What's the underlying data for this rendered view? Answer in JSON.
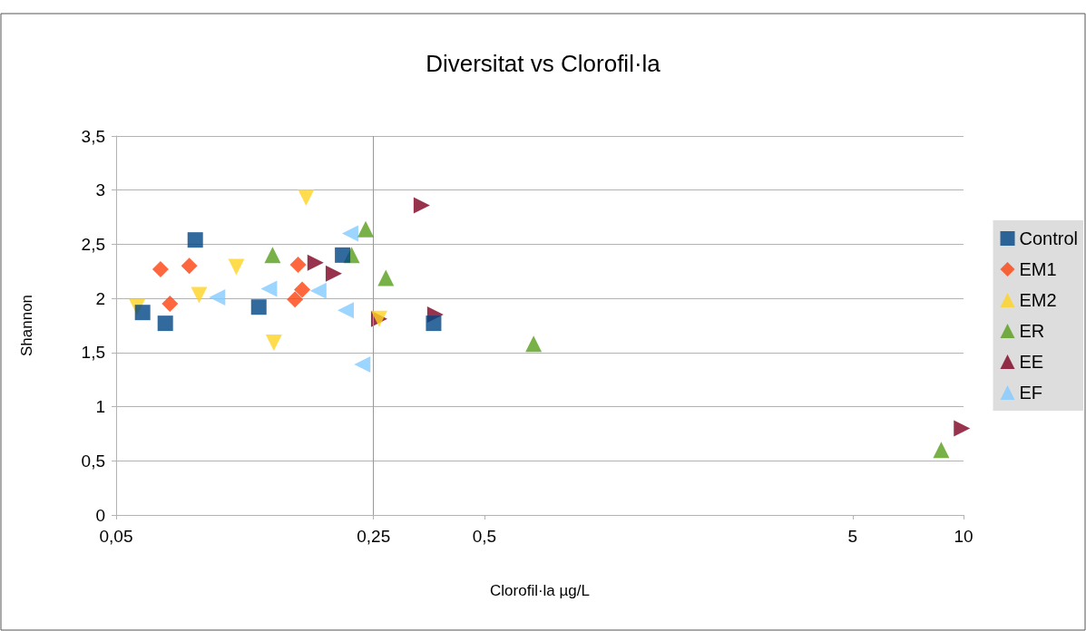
{
  "chart_data": {
    "type": "scatter",
    "title": "Diversitat vs Clorofil·la",
    "xlabel": "Clorofil·la µg/L",
    "ylabel": "Shannon",
    "log": "x",
    "grid": "y",
    "legend": "right",
    "xlim": [
      0.05,
      10
    ],
    "xticks": [
      {
        "value": 0.05,
        "label": "0,05"
      },
      {
        "value": 0.25,
        "label": "0,25"
      },
      {
        "value": 0.5,
        "label": "0,5"
      },
      {
        "value": 5,
        "label": "5"
      },
      {
        "value": 10,
        "label": "10"
      }
    ],
    "ylim": [
      0,
      3.5
    ],
    "yticks": [
      0,
      {
        "value": 0.5,
        "label": "0,5"
      },
      1,
      {
        "value": 1.5,
        "label": "1,5"
      },
      2,
      {
        "value": 2.5,
        "label": "2,5"
      },
      3,
      {
        "value": 3.5,
        "label": "3,5"
      }
    ],
    "ref_lines": [
      {
        "axis": "x",
        "value": 0.25,
        "color": "#999999"
      }
    ],
    "series": [
      {
        "name": "Control",
        "color": "#004586",
        "marker": "square",
        "x": [
          0.059,
          0.068,
          0.082,
          0.122,
          0.206,
          0.364
        ],
        "values": [
          1.87,
          1.77,
          2.54,
          1.92,
          2.4,
          1.77
        ]
      },
      {
        "name": "EM1",
        "color": "#ff420e",
        "marker": "diamond",
        "x": [
          0.066,
          0.07,
          0.079,
          0.156,
          0.153,
          0.16
        ],
        "values": [
          2.27,
          1.95,
          2.3,
          2.31,
          1.99,
          2.08
        ]
      },
      {
        "name": "EM2",
        "color": "#ffd320",
        "marker": "triangle-down",
        "x": [
          0.057,
          0.084,
          0.106,
          0.134,
          0.164,
          0.259
        ],
        "values": [
          1.92,
          2.03,
          2.29,
          1.59,
          2.93,
          1.81
        ]
      },
      {
        "name": "ER",
        "color": "#579d1c",
        "marker": "triangle",
        "x": [
          0.133,
          0.238,
          0.218,
          0.27,
          0.68,
          8.7
        ],
        "values": [
          2.4,
          2.64,
          2.4,
          2.19,
          1.58,
          0.6
        ]
      },
      {
        "name": "EE",
        "color": "#7e0021",
        "marker": "triangle-right",
        "x": [
          0.174,
          0.195,
          0.259,
          0.338,
          0.368,
          9.9
        ],
        "values": [
          2.33,
          2.23,
          1.81,
          2.86,
          1.85,
          0.8
        ]
      },
      {
        "name": "EF",
        "color": "#83caff",
        "marker": "triangle-left",
        "x": [
          0.094,
          0.13,
          0.177,
          0.216,
          0.21,
          0.233
        ],
        "values": [
          2.01,
          2.09,
          2.07,
          2.6,
          1.89,
          1.39
        ]
      }
    ]
  }
}
